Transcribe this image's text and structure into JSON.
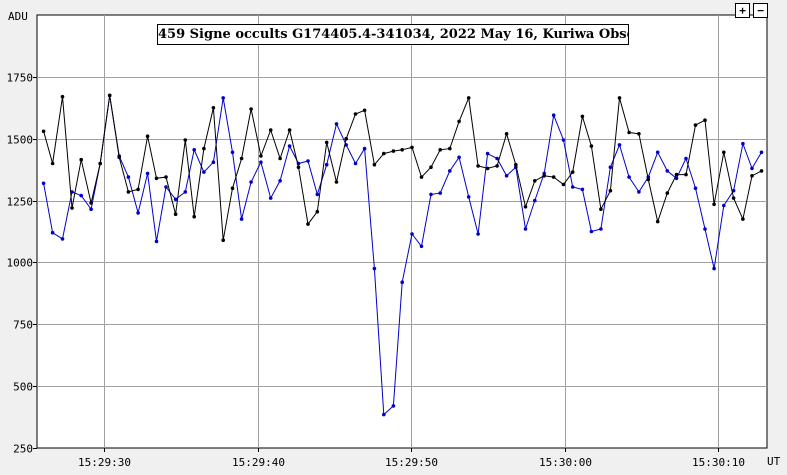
{
  "controls": {
    "zoom_in_icon": "plus-icon",
    "zoom_out_icon": "minus-icon"
  },
  "chart_data": {
    "type": "line",
    "title": "459 Signe occults G174405.4-341034, 2022 May 16, Kuriwa Observatory",
    "ylabel": "ADU",
    "xlabel": "UT",
    "ylim": [
      250,
      2000
    ],
    "yticks": [
      250,
      500,
      750,
      1000,
      1250,
      1500,
      1750
    ],
    "xticks": [
      "15:29:30",
      "15:29:40",
      "15:29:50",
      "15:30:00",
      "15:30:10"
    ],
    "x_unit": "seconds after 15:29:00 UT",
    "xlim": [
      25.6,
      73.2
    ],
    "xtick_values": [
      30,
      40,
      50,
      60,
      70
    ],
    "grid": true,
    "legend": "none",
    "series": [
      {
        "color": "#0000cc",
        "x": [
          26.03,
          26.62,
          27.26,
          27.88,
          28.48,
          29.13,
          29.72,
          30.34,
          30.96,
          31.56,
          32.19,
          32.81,
          33.39,
          34.01,
          34.64,
          35.27,
          35.85,
          36.48,
          37.1,
          37.74,
          38.35,
          38.94,
          39.56,
          40.2,
          40.84,
          41.45,
          42.07,
          42.65,
          43.27,
          43.88,
          44.49,
          45.13,
          45.76,
          46.37,
          46.96,
          47.6,
          48.21,
          48.84,
          49.41,
          50.05,
          50.67,
          51.29,
          51.89,
          52.52,
          53.12,
          53.75,
          54.36,
          54.98,
          55.6,
          56.22,
          56.82,
          57.45,
          58.06,
          58.67,
          59.29,
          59.93,
          60.53,
          61.16,
          61.75,
          62.37,
          62.99,
          63.58,
          64.21,
          64.85,
          65.46,
          66.07,
          66.7,
          67.3,
          67.92,
          68.54,
          69.16,
          69.75,
          70.38,
          71.02,
          71.63,
          72.22,
          72.84
        ],
        "values": [
          1320,
          1120,
          1095,
          1285,
          1270,
          1215,
          1400,
          1675,
          1430,
          1345,
          1200,
          1360,
          1085,
          1305,
          1255,
          1285,
          1455,
          1365,
          1405,
          1665,
          1445,
          1175,
          1325,
          1405,
          1260,
          1330,
          1470,
          1400,
          1410,
          1275,
          1395,
          1560,
          1475,
          1400,
          1460,
          975,
          385,
          420,
          920,
          1115,
          1065,
          1275,
          1280,
          1370,
          1425,
          1265,
          1115,
          1440,
          1420,
          1350,
          1385,
          1135,
          1250,
          1360,
          1595,
          1495,
          1305,
          1295,
          1125,
          1135,
          1385,
          1475,
          1345,
          1285,
          1345,
          1445,
          1370,
          1340,
          1420,
          1300,
          1135,
          975,
          1230,
          1290,
          1480,
          1380,
          1445
        ]
      },
      {
        "color": "#000000",
        "x": [
          26.03,
          26.62,
          27.26,
          27.88,
          28.48,
          29.13,
          29.72,
          30.34,
          30.96,
          31.56,
          32.19,
          32.81,
          33.39,
          34.01,
          34.64,
          35.27,
          35.85,
          36.48,
          37.1,
          37.74,
          38.35,
          38.94,
          39.56,
          40.2,
          40.84,
          41.45,
          42.07,
          42.65,
          43.27,
          43.88,
          44.49,
          45.13,
          45.76,
          46.37,
          46.96,
          47.6,
          48.21,
          48.84,
          49.41,
          50.05,
          50.67,
          51.29,
          51.89,
          52.52,
          53.12,
          53.75,
          54.36,
          54.98,
          55.6,
          56.22,
          56.82,
          57.45,
          58.06,
          58.67,
          59.29,
          59.93,
          60.53,
          61.16,
          61.75,
          62.37,
          62.99,
          63.58,
          64.21,
          64.85,
          65.46,
          66.07,
          66.7,
          67.3,
          67.92,
          68.54,
          69.16,
          69.75,
          70.38,
          71.02,
          71.63,
          72.22,
          72.84
        ],
        "values": [
          1530,
          1400,
          1670,
          1220,
          1415,
          1240,
          1400,
          1675,
          1425,
          1285,
          1295,
          1510,
          1340,
          1345,
          1195,
          1495,
          1185,
          1460,
          1625,
          1090,
          1300,
          1420,
          1620,
          1430,
          1535,
          1420,
          1535,
          1385,
          1155,
          1205,
          1485,
          1325,
          1500,
          1600,
          1615,
          1395,
          1440,
          1450,
          1455,
          1465,
          1345,
          1385,
          1455,
          1460,
          1570,
          1665,
          1390,
          1380,
          1390,
          1520,
          1395,
          1225,
          1330,
          1350,
          1345,
          1315,
          1365,
          1590,
          1470,
          1215,
          1290,
          1665,
          1525,
          1520,
          1335,
          1165,
          1280,
          1355,
          1355,
          1555,
          1575,
          1235,
          1445,
          1260,
          1175,
          1350,
          1370
        ]
      }
    ]
  }
}
